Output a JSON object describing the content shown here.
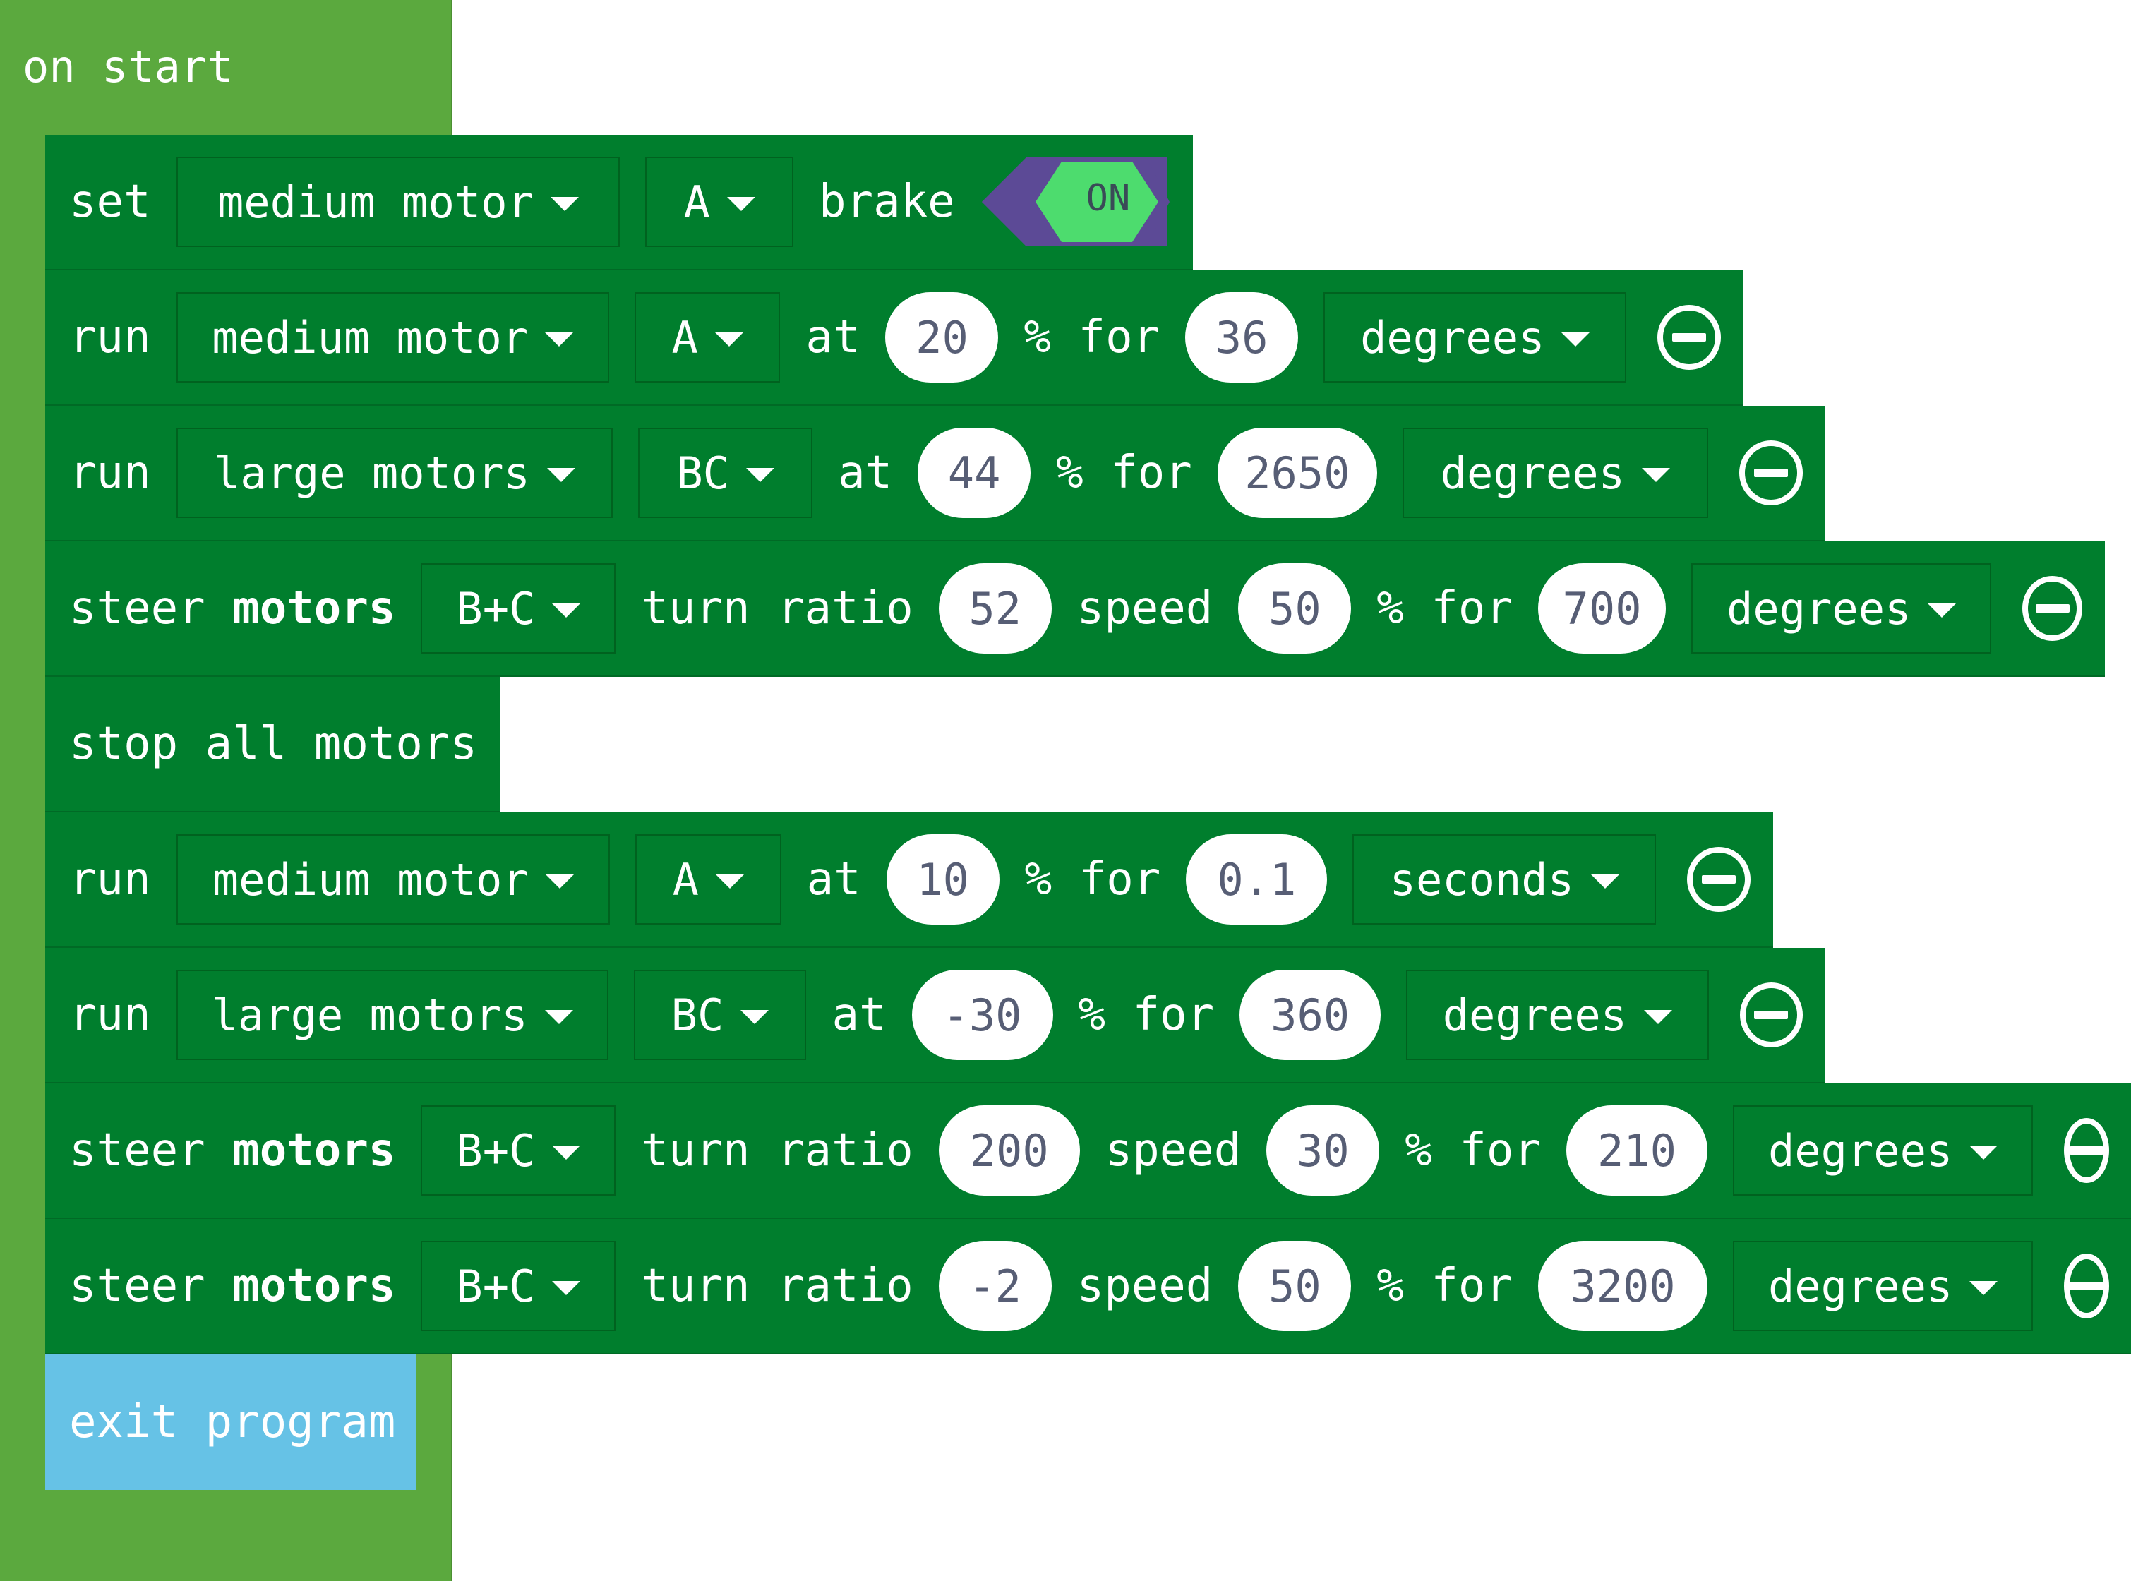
{
  "hat": {
    "label": "on start"
  },
  "blocks": [
    {
      "id": "b1",
      "word": "set",
      "motor": "medium motor",
      "port": "A",
      "after": "brake",
      "toggle": "ON"
    },
    {
      "id": "b2",
      "word": "run",
      "motor": "medium motor",
      "port": "A",
      "at": "at",
      "speed": "20",
      "pct_for": "% for",
      "amount": "36",
      "unit": "degrees"
    },
    {
      "id": "b3",
      "word": "run",
      "motor": "large motors",
      "port": "BC",
      "at": "at",
      "speed": "44",
      "pct_for": "% for",
      "amount": "2650",
      "unit": "degrees"
    },
    {
      "id": "b4",
      "word": "steer",
      "word2": "motors",
      "port": "B+C",
      "turn": "turn ratio",
      "ratio": "52",
      "speed_word": "speed",
      "speed": "50",
      "pct_for": "% for",
      "amount": "700",
      "unit": "degrees"
    },
    {
      "id": "b5",
      "word": "stop all motors"
    },
    {
      "id": "b6",
      "word": "run",
      "motor": "medium motor",
      "port": "A",
      "at": "at",
      "speed": "10",
      "pct_for": "% for",
      "amount": "0.1",
      "unit": "seconds"
    },
    {
      "id": "b7",
      "word": "run",
      "motor": "large motors",
      "port": "BC",
      "at": "at",
      "speed": "-30",
      "pct_for": "% for",
      "amount": "360",
      "unit": "degrees"
    },
    {
      "id": "b8",
      "word": "steer",
      "word2": "motors",
      "port": "B+C",
      "turn": "turn ratio",
      "ratio": "200",
      "speed_word": "speed",
      "speed": "30",
      "pct_for": "% for",
      "amount": "210",
      "unit": "degrees"
    },
    {
      "id": "b9",
      "word": "steer",
      "word2": "motors",
      "port": "B+C",
      "turn": "turn ratio",
      "ratio": "-2",
      "speed_word": "speed",
      "speed": "50",
      "pct_for": "% for",
      "amount": "3200",
      "unit": "degrees"
    }
  ],
  "exit": {
    "label": "exit program"
  },
  "colors": {
    "hat": "#5ba93e",
    "motor_block": "#007e2d",
    "exit_block": "#66c2e6",
    "toggle_body": "#5c4a96",
    "toggle_on": "#4ddc6e"
  },
  "icons": {
    "remove": "minus-circle-icon",
    "dropdown": "caret-down-icon"
  }
}
